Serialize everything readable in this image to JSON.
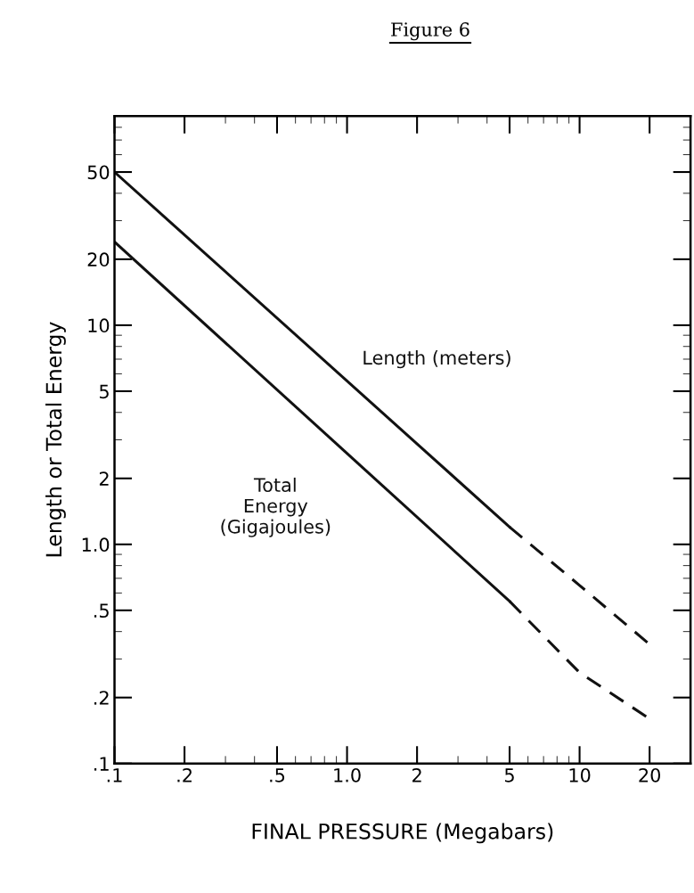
{
  "chart_data": {
    "type": "line",
    "title": "Figure 6",
    "xlabel": "FINAL PRESSURE (Megabars)",
    "ylabel": "Length or Total Energy",
    "log": "xy",
    "grid": false,
    "marker": "none",
    "series": [
      {
        "name": "Length (meters)",
        "color": "#111111",
        "line_style": "solid",
        "x": [
          0.1,
          5
        ],
        "values": [
          50,
          1.2
        ]
      },
      {
        "color": "#111111",
        "line_style": "dashed",
        "x": [
          5,
          10,
          20
        ],
        "values": [
          1.2,
          0.65,
          0.35
        ]
      },
      {
        "name": "Total Energy (Gigajoules)",
        "color": "#111111",
        "line_style": "solid",
        "x": [
          0.1,
          5
        ],
        "values": [
          24,
          0.55
        ]
      },
      {
        "color": "#111111",
        "line_style": "dashed",
        "x": [
          5,
          10,
          20
        ],
        "values": [
          0.55,
          0.26,
          0.16
        ]
      }
    ],
    "xlim": [
      0.1,
      30
    ],
    "xticks": [
      {
        "value": 0.1,
        "label": ".1"
      },
      {
        "value": 0.2,
        "label": ".2"
      },
      {
        "value": 0.5,
        "label": ".5"
      },
      {
        "value": 1,
        "label": "1.0"
      },
      2,
      5,
      10,
      20
    ],
    "ylim": [
      0.1,
      90
    ],
    "yticks": [
      {
        "value": 0.1,
        "label": ".1"
      },
      {
        "value": 0.2,
        "label": ".2"
      },
      {
        "value": 0.5,
        "label": ".5"
      },
      {
        "value": 1,
        "label": "1.0"
      },
      2,
      5,
      10,
      20,
      50
    ]
  }
}
